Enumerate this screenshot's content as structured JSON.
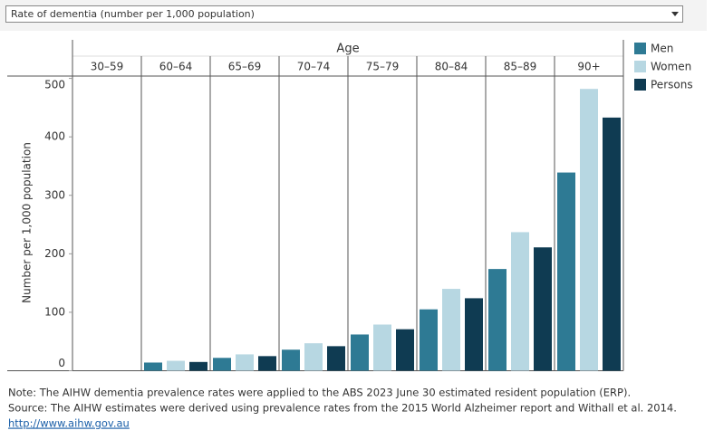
{
  "dropdown": {
    "selected": "Rate of dementia (number per 1,000 population)"
  },
  "chart_data": {
    "type": "bar",
    "x_title": "Age",
    "y_title": "Number per 1,000 population",
    "categories": [
      "30–59",
      "60–64",
      "65–69",
      "70–74",
      "75–79",
      "80–84",
      "85–89",
      "90+"
    ],
    "series": [
      {
        "name": "Men",
        "color": "#2e7a94",
        "values": [
          null,
          14,
          22,
          36,
          62,
          105,
          174,
          339
        ]
      },
      {
        "name": "Women",
        "color": "#b7d7e2",
        "values": [
          null,
          17,
          28,
          47,
          79,
          140,
          237,
          482
        ]
      },
      {
        "name": "Persons",
        "color": "#0f3b52",
        "values": [
          null,
          15,
          25,
          42,
          71,
          124,
          211,
          433
        ]
      }
    ],
    "ylim": [
      0,
      504
    ],
    "yticks": [
      0,
      100,
      200,
      300,
      400,
      500
    ],
    "legend": "right"
  },
  "notes": [
    "Note: The AIHW dementia prevalence rates were applied to the ABS 2023 June 30 estimated resident population (ERP).",
    "Source: The AIHW estimates were derived using prevalence rates from the 2015 World Alzheimer report and Withall et al. 2014.",
    "http://www.aihw.gov.au"
  ]
}
